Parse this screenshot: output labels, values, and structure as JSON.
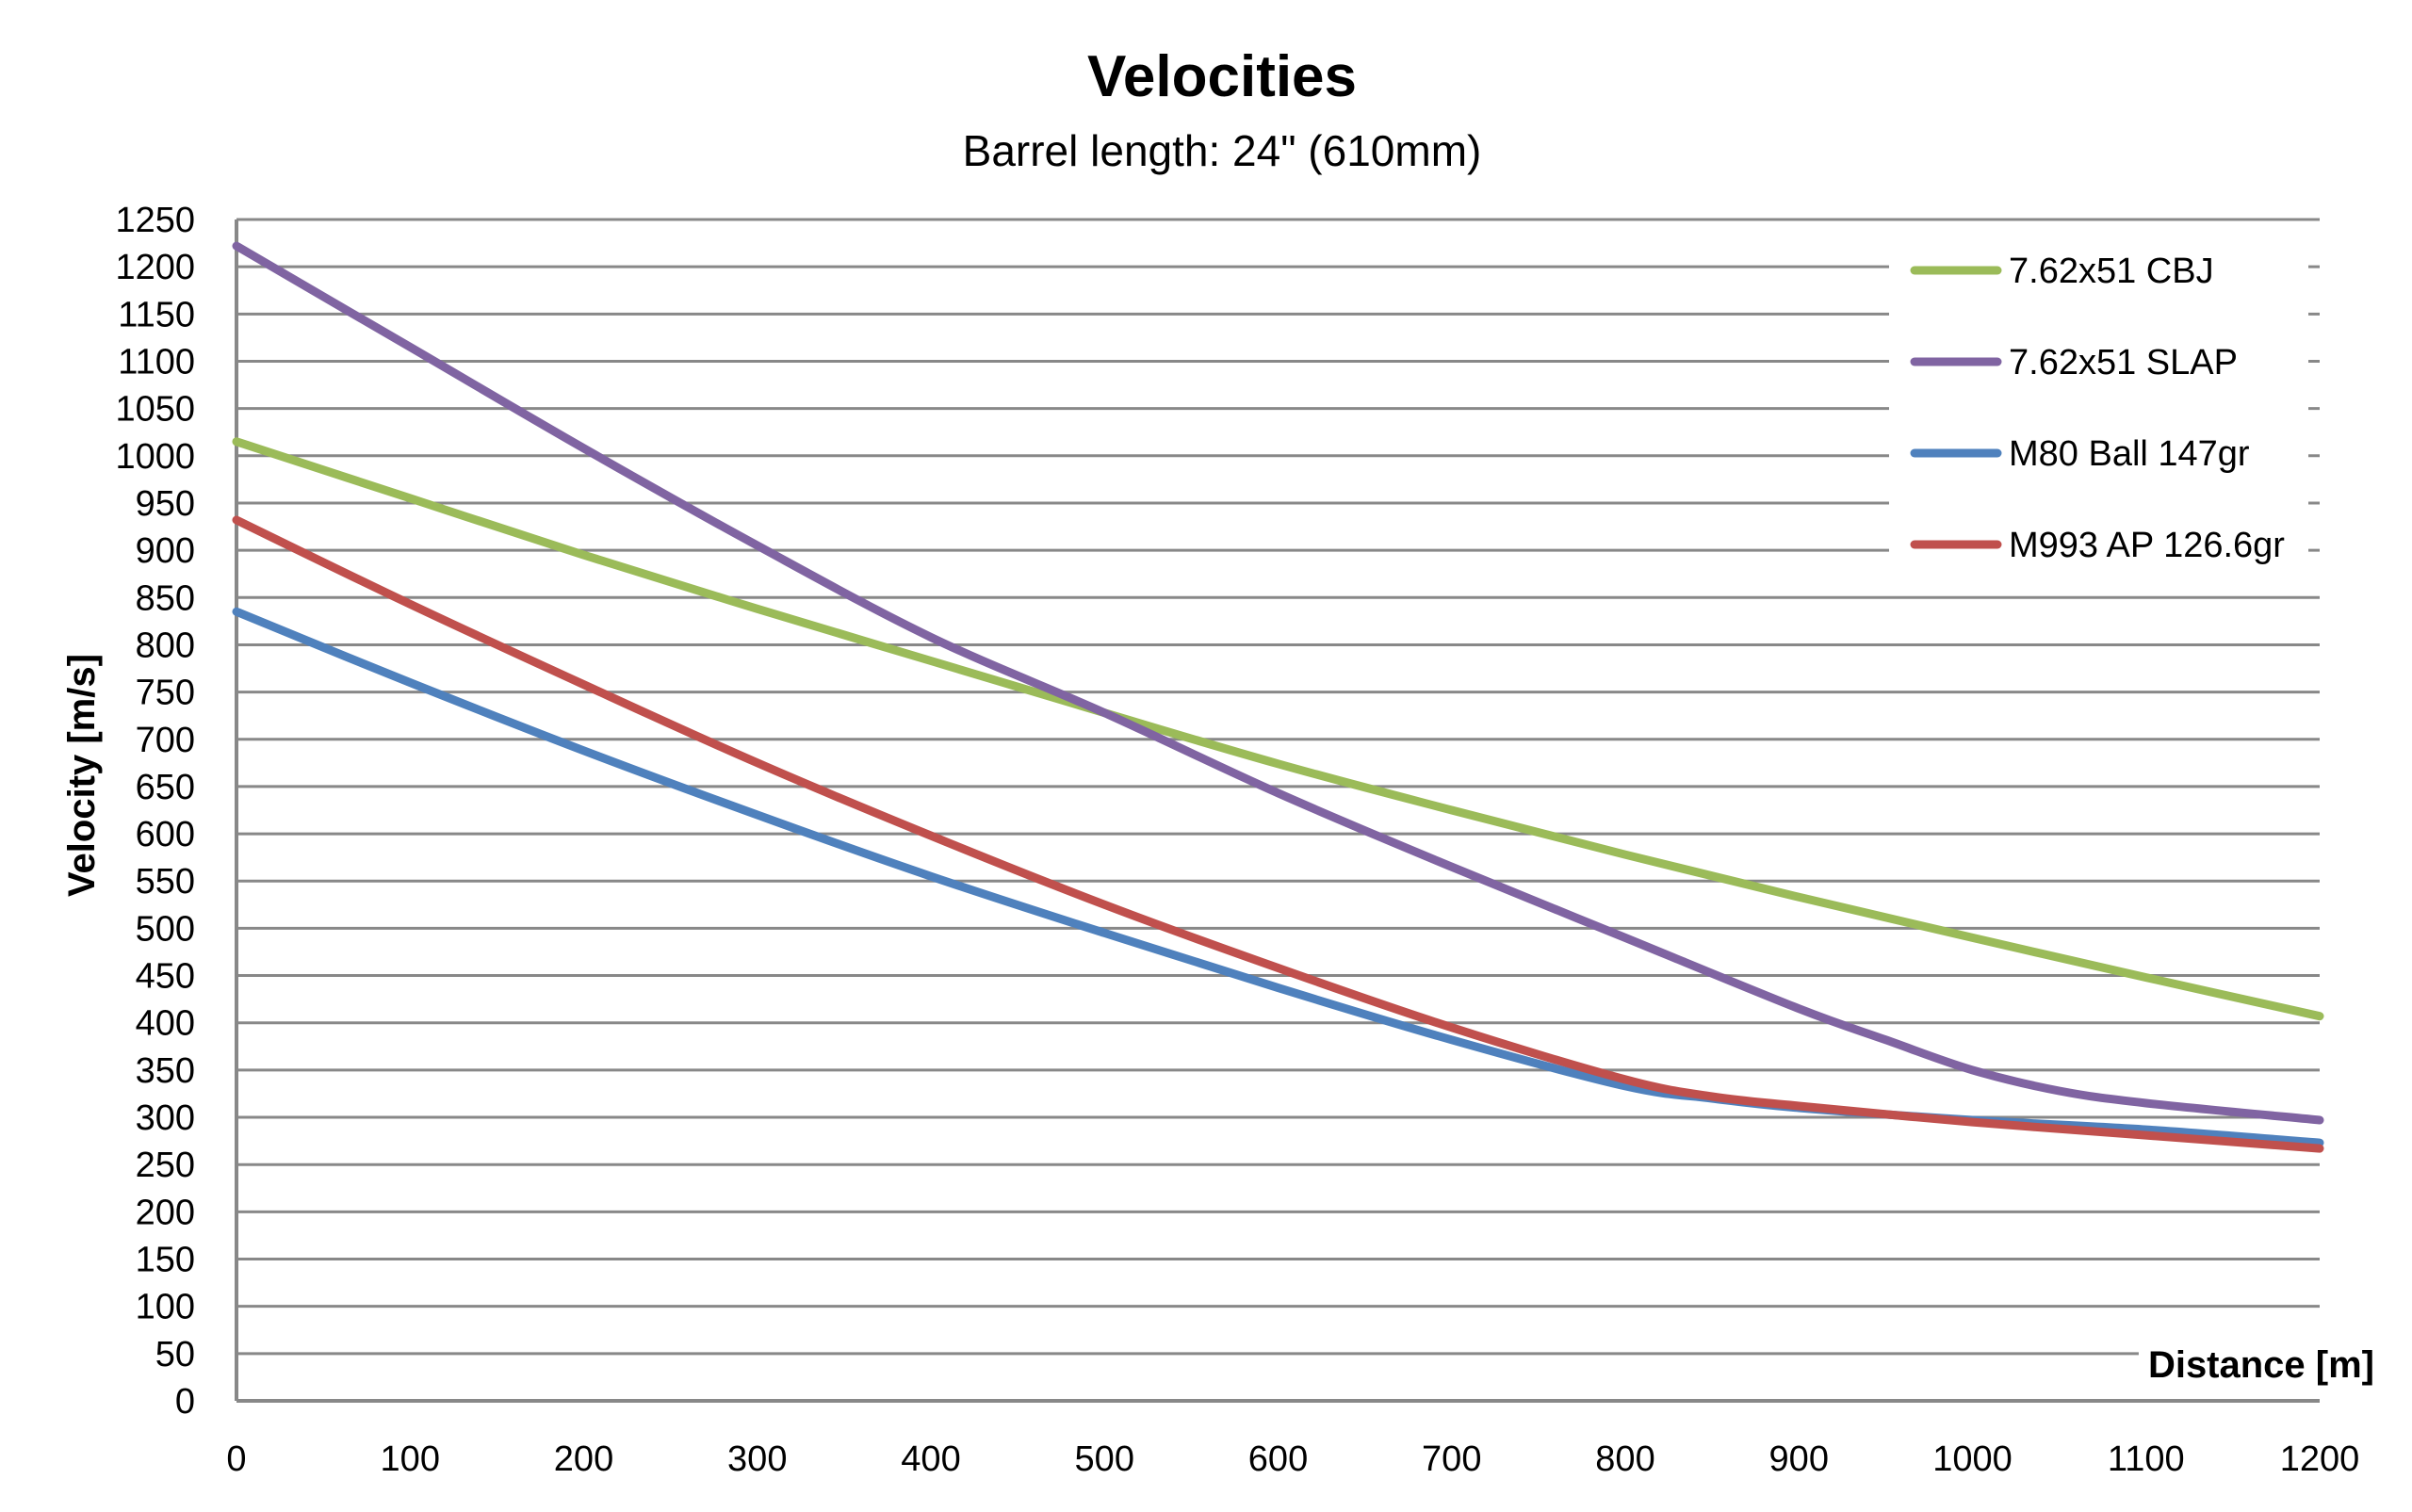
{
  "chart_data": {
    "type": "line",
    "title": "Velocities",
    "subtitle": "Barrel length: 24\" (610mm)",
    "xlabel": "Distance [m]",
    "ylabel": "Velocity [m/s]",
    "xlim": [
      0,
      1200
    ],
    "ylim": [
      0,
      1250
    ],
    "xticks": [
      0,
      100,
      200,
      300,
      400,
      500,
      600,
      700,
      800,
      900,
      1000,
      1100,
      1200
    ],
    "yticks": [
      0,
      50,
      100,
      150,
      200,
      250,
      300,
      350,
      400,
      450,
      500,
      550,
      600,
      650,
      700,
      750,
      800,
      850,
      900,
      950,
      1000,
      1050,
      1100,
      1150,
      1200,
      1250
    ],
    "grid": true,
    "legend_position": "top-right",
    "series": [
      {
        "name": "7.62x51 CBJ",
        "color": "#9BBB59",
        "x": [
          0,
          100,
          200,
          300,
          400,
          500,
          600,
          700,
          800,
          900,
          1000,
          1100,
          1200
        ],
        "y": [
          1015,
          955,
          895,
          838,
          783,
          728,
          674,
          625,
          578,
          533,
          490,
          448,
          407
        ]
      },
      {
        "name": "7.62x51 SLAP",
        "color": "#8064A2",
        "x": [
          0,
          100,
          200,
          300,
          400,
          500,
          600,
          700,
          800,
          900,
          950,
          1000,
          1050,
          1100,
          1200
        ],
        "y": [
          1222,
          1115,
          1008,
          905,
          808,
          728,
          643,
          565,
          490,
          415,
          382,
          350,
          328,
          315,
          297
        ]
      },
      {
        "name": "M80 Ball 147gr",
        "color": "#4F81BD",
        "x": [
          0,
          100,
          200,
          300,
          400,
          500,
          600,
          700,
          800,
          850,
          900,
          1000,
          1100,
          1200
        ],
        "y": [
          835,
          760,
          688,
          620,
          555,
          495,
          437,
          382,
          333,
          320,
          310,
          297,
          287,
          273
        ]
      },
      {
        "name": "M993 AP 126.6gr",
        "color": "#C0504D",
        "x": [
          0,
          100,
          200,
          300,
          400,
          500,
          600,
          700,
          800,
          850,
          900,
          1000,
          1100,
          1200
        ],
        "y": [
          932,
          843,
          758,
          675,
          598,
          525,
          458,
          395,
          340,
          322,
          312,
          295,
          281,
          267
        ]
      }
    ]
  }
}
